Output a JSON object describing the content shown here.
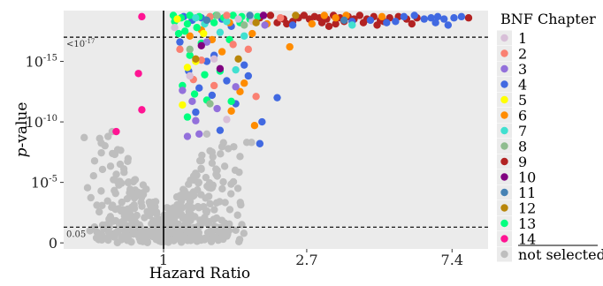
{
  "chart_data": {
    "type": "scatter",
    "title": "",
    "xlabel": "Hazard Ratio",
    "ylabel_italic": "p",
    "ylabel_rest": "-value",
    "x_scale": "log",
    "y_scale": "-log10",
    "xlim": [
      0.5,
      9.5
    ],
    "ylim_neglog10": [
      -0.5,
      19.2
    ],
    "x_ticks": [
      {
        "value": 1,
        "label": "1"
      },
      {
        "value": 2.7,
        "label": "2.7"
      },
      {
        "value": 7.4,
        "label": "7.4"
      }
    ],
    "y_ticks": [
      {
        "value": 0,
        "base": "0",
        "exp": ""
      },
      {
        "value": 5,
        "base": "10",
        "exp": "-5"
      },
      {
        "value": 10,
        "base": "10",
        "exp": "-10"
      },
      {
        "value": 15,
        "base": "10",
        "exp": "-15"
      }
    ],
    "reference_lines": {
      "vertical_x": 1,
      "upper_threshold": {
        "value": 17,
        "label_base": "<10",
        "label_exp": "-17"
      },
      "lower_threshold": {
        "value": 1.301,
        "label": "0.05"
      }
    },
    "legend": {
      "title": "BNF Chapter",
      "placement": "right",
      "entries": [
        {
          "key": "1",
          "label": "1",
          "color": "#d8bfd8"
        },
        {
          "key": "2",
          "label": "2",
          "color": "#fa8072"
        },
        {
          "key": "3",
          "label": "3",
          "color": "#9370db"
        },
        {
          "key": "4",
          "label": "4",
          "color": "#4169e1"
        },
        {
          "key": "5",
          "label": "5",
          "color": "#ffff00"
        },
        {
          "key": "6",
          "label": "6",
          "color": "#ff8c00"
        },
        {
          "key": "7",
          "label": "7",
          "color": "#40e0d0"
        },
        {
          "key": "8",
          "label": "8",
          "color": "#8fbc8f"
        },
        {
          "key": "9",
          "label": "9",
          "color": "#b22222"
        },
        {
          "key": "10",
          "label": "10",
          "color": "#800080"
        },
        {
          "key": "11",
          "label": "11",
          "color": "#4682b4"
        },
        {
          "key": "12",
          "label": "12",
          "color": "#b8860b"
        },
        {
          "key": "13",
          "label": "13",
          "color": "#00ff7f"
        },
        {
          "key": "14",
          "label": "14",
          "color": "#ff1493"
        },
        {
          "key": "ns",
          "label": "not selected",
          "color": "#bebebe"
        }
      ]
    },
    "series": [
      {
        "key": "14",
        "points": [
          [
            0.86,
            18.7
          ],
          [
            0.84,
            14.0
          ],
          [
            0.86,
            11.0
          ],
          [
            0.72,
            9.2
          ]
        ]
      },
      {
        "key": "9",
        "points": [
          [
            2.55,
            18.6
          ],
          [
            2.65,
            18.8
          ],
          [
            2.75,
            18.5
          ],
          [
            2.85,
            18.7
          ],
          [
            2.95,
            18.6
          ],
          [
            3.1,
            18.5
          ],
          [
            3.25,
            18.8
          ],
          [
            3.4,
            18.6
          ],
          [
            3.5,
            18.3
          ],
          [
            3.6,
            18.7
          ],
          [
            3.75,
            18.5
          ],
          [
            3.9,
            18.8
          ],
          [
            4.1,
            18.5
          ],
          [
            4.3,
            18.7
          ],
          [
            4.5,
            18.4
          ],
          [
            4.8,
            18.6
          ],
          [
            5.1,
            18.7
          ],
          [
            5.4,
            18.5
          ],
          [
            5.8,
            18.6
          ],
          [
            8.3,
            18.6
          ],
          [
            2.45,
            18.3
          ],
          [
            3.0,
            18.2
          ],
          [
            3.3,
            18.1
          ],
          [
            4.0,
            18.2
          ],
          [
            4.6,
            18.3
          ],
          [
            1.95,
            18.6
          ],
          [
            2.1,
            18.8
          ],
          [
            2.3,
            18.5
          ],
          [
            2.35,
            18.1
          ],
          [
            2.2,
            18.2
          ],
          [
            3.15,
            17.9
          ],
          [
            5.6,
            18.1
          ],
          [
            4.4,
            18.0
          ]
        ]
      },
      {
        "key": "4",
        "points": [
          [
            5.3,
            18.7
          ],
          [
            5.7,
            18.8
          ],
          [
            6.1,
            18.5
          ],
          [
            6.4,
            18.6
          ],
          [
            6.7,
            18.7
          ],
          [
            7.0,
            18.5
          ],
          [
            7.5,
            18.6
          ],
          [
            7.9,
            18.7
          ],
          [
            3.7,
            18.3
          ],
          [
            4.2,
            18.4
          ],
          [
            4.7,
            18.2
          ],
          [
            5.0,
            18.3
          ],
          [
            6.6,
            18.2
          ],
          [
            7.2,
            18.0
          ],
          [
            2.45,
            18.0
          ],
          [
            1.6,
            17.9
          ],
          [
            1.5,
            18.5
          ],
          [
            1.3,
            18.6
          ],
          [
            1.22,
            18.4
          ],
          [
            1.35,
            15.0
          ],
          [
            1.28,
            12.8
          ],
          [
            1.55,
            13.4
          ],
          [
            1.65,
            11.5
          ],
          [
            1.4,
            12.2
          ],
          [
            1.25,
            10.8
          ],
          [
            1.8,
            13.8
          ],
          [
            1.98,
            10.0
          ],
          [
            1.12,
            16.6
          ],
          [
            1.19,
            14.2
          ],
          [
            2.2,
            12.0
          ],
          [
            1.42,
            15.5
          ],
          [
            1.95,
            8.2
          ],
          [
            1.75,
            14.7
          ],
          [
            1.15,
            18.7
          ],
          [
            1.48,
            9.3
          ]
        ]
      },
      {
        "key": "6",
        "points": [
          [
            3.55,
            18.8
          ],
          [
            2.4,
            16.2
          ],
          [
            1.88,
            9.7
          ],
          [
            4.55,
            18.7
          ],
          [
            3.05,
            18.8
          ],
          [
            2.05,
            18.1
          ],
          [
            1.3,
            17.6
          ],
          [
            1.7,
            12.5
          ],
          [
            1.58,
            18.2
          ],
          [
            3.3,
            18.6
          ],
          [
            1.5,
            15.8
          ],
          [
            1.4,
            16.8
          ],
          [
            1.75,
            13.2
          ],
          [
            1.2,
            17.1
          ],
          [
            2.8,
            18.1
          ],
          [
            1.6,
            10.9
          ],
          [
            1.85,
            17.3
          ]
        ]
      },
      {
        "key": "13",
        "points": [
          [
            1.07,
            18.8
          ],
          [
            1.13,
            18.6
          ],
          [
            1.2,
            18.8
          ],
          [
            1.28,
            18.7
          ],
          [
            1.36,
            18.5
          ],
          [
            1.44,
            18.8
          ],
          [
            1.52,
            18.6
          ],
          [
            1.62,
            18.8
          ],
          [
            1.72,
            18.7
          ],
          [
            1.82,
            18.5
          ],
          [
            1.92,
            18.7
          ],
          [
            1.08,
            18.3
          ],
          [
            1.18,
            18.1
          ],
          [
            1.16,
            17.5
          ],
          [
            1.11,
            17.3
          ],
          [
            1.26,
            17.8
          ],
          [
            1.2,
            15.5
          ],
          [
            1.24,
            12.3
          ],
          [
            1.33,
            13.9
          ],
          [
            1.14,
            13.0
          ],
          [
            1.35,
            11.8
          ],
          [
            1.18,
            10.4
          ],
          [
            1.6,
            11.7
          ],
          [
            1.48,
            14.2
          ],
          [
            1.42,
            18.2
          ],
          [
            1.3,
            16.5
          ],
          [
            1.58,
            16.8
          ],
          [
            1.7,
            18.2
          ]
        ]
      },
      {
        "key": "7",
        "points": [
          [
            1.55,
            18.3
          ],
          [
            1.25,
            18.6
          ],
          [
            3.7,
            18.0
          ],
          [
            1.48,
            17.4
          ],
          [
            1.75,
            17.1
          ],
          [
            1.33,
            18.1
          ],
          [
            1.65,
            14.3
          ]
        ]
      },
      {
        "key": "2",
        "points": [
          [
            1.12,
            16.0
          ],
          [
            1.23,
            13.5
          ],
          [
            1.38,
            18.7
          ],
          [
            1.62,
            16.4
          ],
          [
            1.9,
            12.1
          ],
          [
            2.25,
            18.6
          ],
          [
            1.55,
            18.8
          ],
          [
            1.3,
            15.1
          ],
          [
            1.42,
            13.0
          ],
          [
            1.8,
            16.0
          ]
        ]
      },
      {
        "key": "3",
        "points": [
          [
            1.14,
            12.6
          ],
          [
            1.25,
            10.1
          ],
          [
            1.45,
            11.1
          ],
          [
            1.28,
            9.0
          ],
          [
            1.35,
            16.6
          ],
          [
            1.65,
            12.9
          ],
          [
            1.18,
            8.8
          ],
          [
            2.02,
            18.0
          ],
          [
            1.22,
            11.7
          ]
        ]
      },
      {
        "key": "1",
        "points": [
          [
            1.42,
            15.2
          ],
          [
            1.85,
            18.3
          ],
          [
            1.08,
            17.8
          ],
          [
            1.2,
            13.8
          ],
          [
            1.55,
            10.2
          ],
          [
            1.68,
            18.5
          ]
        ]
      },
      {
        "key": "5",
        "points": [
          [
            1.14,
            11.4
          ],
          [
            1.18,
            14.5
          ],
          [
            1.25,
            15.0
          ],
          [
            1.1,
            18.5
          ],
          [
            1.32,
            17.3
          ]
        ]
      },
      {
        "key": "8",
        "points": [
          [
            1.75,
            18.0
          ],
          [
            1.45,
            18.8
          ],
          [
            1.2,
            16.0
          ],
          [
            1.38,
            11.5
          ]
        ]
      },
      {
        "key": "10",
        "points": [
          [
            1.48,
            14.4
          ],
          [
            2.0,
            18.8
          ],
          [
            1.3,
            16.3
          ]
        ]
      },
      {
        "key": "11",
        "points": [
          [
            1.35,
            18.4
          ],
          [
            1.82,
            18.8
          ],
          [
            3.5,
            18.4
          ]
        ]
      },
      {
        "key": "12",
        "points": [
          [
            1.9,
            18.2
          ],
          [
            1.68,
            15.2
          ],
          [
            2.5,
            18.8
          ],
          [
            1.25,
            15.2
          ]
        ]
      }
    ]
  }
}
